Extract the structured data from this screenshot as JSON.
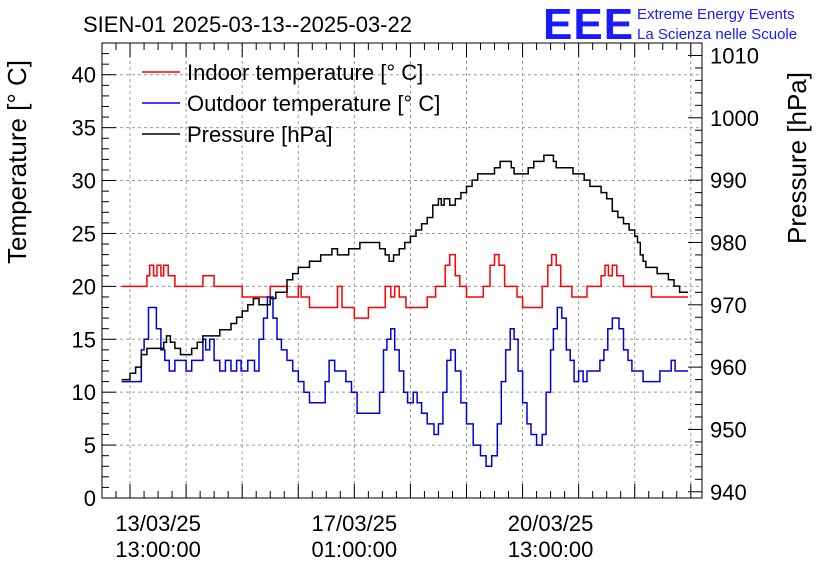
{
  "chart_data": {
    "type": "line",
    "title": "SIEN-01 2025-03-13--2025-03-22",
    "ylabel_left": "Temperature [° C]",
    "ylabel_right": "Pressure [hPa]",
    "ylim_left": [
      0,
      43
    ],
    "ylim_right": [
      939,
      1012
    ],
    "xlim": [
      -0.5,
      10.2
    ],
    "left_ticks": [
      "0",
      "5",
      "10",
      "15",
      "20",
      "25",
      "30",
      "35",
      "40"
    ],
    "right_ticks": [
      "940",
      "950",
      "960",
      "970",
      "980",
      "990",
      "1000",
      "1010"
    ],
    "x_ticks": [
      {
        "pos": 0.5,
        "line1": "13/03/25",
        "line2": "13:00:00"
      },
      {
        "pos": 4.0,
        "line1": "17/03/25",
        "line2": "01:00:00"
      },
      {
        "pos": 7.5,
        "line1": "20/03/25",
        "line2": "13:00:00"
      }
    ],
    "grid": true,
    "legend_position": "top-left",
    "series": [
      {
        "name": "Indoor temperature [° C]",
        "color": "#ff0000",
        "axis": "left",
        "points": [
          [
            -0.15,
            20
          ],
          [
            0.2,
            20
          ],
          [
            0.3,
            21
          ],
          [
            0.35,
            22
          ],
          [
            0.42,
            21
          ],
          [
            0.48,
            22
          ],
          [
            0.55,
            21
          ],
          [
            0.6,
            22
          ],
          [
            0.68,
            21
          ],
          [
            0.8,
            20
          ],
          [
            1.2,
            20
          ],
          [
            1.3,
            21
          ],
          [
            1.42,
            21
          ],
          [
            1.5,
            20
          ],
          [
            1.9,
            20
          ],
          [
            2.0,
            19
          ],
          [
            2.4,
            19
          ],
          [
            2.5,
            20
          ],
          [
            2.72,
            20
          ],
          [
            2.8,
            19
          ],
          [
            2.92,
            19
          ],
          [
            3.0,
            20
          ],
          [
            3.05,
            19
          ],
          [
            3.12,
            19
          ],
          [
            3.2,
            18
          ],
          [
            3.6,
            18
          ],
          [
            3.7,
            20
          ],
          [
            3.78,
            18
          ],
          [
            3.9,
            18
          ],
          [
            4.0,
            17
          ],
          [
            4.15,
            17
          ],
          [
            4.25,
            18
          ],
          [
            4.45,
            18
          ],
          [
            4.55,
            20
          ],
          [
            4.65,
            19
          ],
          [
            4.72,
            20
          ],
          [
            4.8,
            19
          ],
          [
            4.92,
            18
          ],
          [
            5.2,
            18
          ],
          [
            5.3,
            19
          ],
          [
            5.45,
            20
          ],
          [
            5.55,
            20
          ],
          [
            5.62,
            22
          ],
          [
            5.7,
            23
          ],
          [
            5.8,
            21
          ],
          [
            5.88,
            20
          ],
          [
            6.0,
            19
          ],
          [
            6.2,
            19
          ],
          [
            6.3,
            20
          ],
          [
            6.42,
            22
          ],
          [
            6.5,
            23
          ],
          [
            6.58,
            22
          ],
          [
            6.68,
            20
          ],
          [
            6.8,
            20
          ],
          [
            6.9,
            19
          ],
          [
            7.0,
            18
          ],
          [
            7.25,
            18
          ],
          [
            7.35,
            20
          ],
          [
            7.45,
            22
          ],
          [
            7.52,
            23
          ],
          [
            7.6,
            22
          ],
          [
            7.68,
            20
          ],
          [
            7.78,
            20
          ],
          [
            7.88,
            19
          ],
          [
            8.05,
            19
          ],
          [
            8.15,
            20
          ],
          [
            8.3,
            20
          ],
          [
            8.4,
            21
          ],
          [
            8.47,
            22
          ],
          [
            8.53,
            21
          ],
          [
            8.6,
            22
          ],
          [
            8.68,
            21
          ],
          [
            8.8,
            20
          ],
          [
            9.2,
            20
          ],
          [
            9.3,
            19
          ],
          [
            9.95,
            19
          ]
        ]
      },
      {
        "name": "Outdoor temperature [° C]",
        "color": "#0000dd",
        "axis": "left",
        "points": [
          [
            -0.15,
            11
          ],
          [
            0.1,
            11
          ],
          [
            0.2,
            14
          ],
          [
            0.25,
            15
          ],
          [
            0.33,
            18
          ],
          [
            0.4,
            18
          ],
          [
            0.47,
            16
          ],
          [
            0.55,
            14
          ],
          [
            0.62,
            13
          ],
          [
            0.7,
            12
          ],
          [
            0.8,
            13
          ],
          [
            0.9,
            13
          ],
          [
            1.0,
            12
          ],
          [
            1.1,
            13
          ],
          [
            1.2,
            13
          ],
          [
            1.3,
            15
          ],
          [
            1.35,
            14
          ],
          [
            1.42,
            15
          ],
          [
            1.5,
            13
          ],
          [
            1.6,
            12
          ],
          [
            1.7,
            13
          ],
          [
            1.8,
            12
          ],
          [
            1.9,
            13
          ],
          [
            1.98,
            12
          ],
          [
            2.1,
            13
          ],
          [
            2.22,
            12
          ],
          [
            2.3,
            15
          ],
          [
            2.38,
            17
          ],
          [
            2.45,
            19
          ],
          [
            2.55,
            17
          ],
          [
            2.62,
            15
          ],
          [
            2.7,
            14
          ],
          [
            2.8,
            13
          ],
          [
            2.9,
            12
          ],
          [
            3.0,
            11
          ],
          [
            3.1,
            10
          ],
          [
            3.2,
            9
          ],
          [
            3.4,
            9
          ],
          [
            3.48,
            11
          ],
          [
            3.55,
            13
          ],
          [
            3.65,
            12
          ],
          [
            3.75,
            12
          ],
          [
            3.85,
            11
          ],
          [
            3.95,
            10
          ],
          [
            4.05,
            8
          ],
          [
            4.35,
            8
          ],
          [
            4.45,
            10
          ],
          [
            4.52,
            14
          ],
          [
            4.58,
            15
          ],
          [
            4.65,
            16
          ],
          [
            4.72,
            14
          ],
          [
            4.8,
            12
          ],
          [
            4.88,
            10
          ],
          [
            4.95,
            9
          ],
          [
            5.05,
            10
          ],
          [
            5.12,
            9
          ],
          [
            5.2,
            8
          ],
          [
            5.3,
            7
          ],
          [
            5.42,
            6
          ],
          [
            5.5,
            7
          ],
          [
            5.58,
            10
          ],
          [
            5.65,
            13
          ],
          [
            5.72,
            14
          ],
          [
            5.8,
            12
          ],
          [
            5.9,
            9
          ],
          [
            6.0,
            7
          ],
          [
            6.12,
            5
          ],
          [
            6.25,
            4
          ],
          [
            6.35,
            3
          ],
          [
            6.45,
            4
          ],
          [
            6.55,
            7
          ],
          [
            6.62,
            11
          ],
          [
            6.7,
            14
          ],
          [
            6.78,
            16
          ],
          [
            6.85,
            15
          ],
          [
            6.92,
            12
          ],
          [
            7.0,
            9
          ],
          [
            7.08,
            7
          ],
          [
            7.15,
            6
          ],
          [
            7.25,
            5
          ],
          [
            7.35,
            6
          ],
          [
            7.42,
            10
          ],
          [
            7.5,
            14
          ],
          [
            7.55,
            16
          ],
          [
            7.62,
            18
          ],
          [
            7.7,
            17
          ],
          [
            7.78,
            14
          ],
          [
            7.85,
            13
          ],
          [
            7.92,
            11
          ],
          [
            8.0,
            12
          ],
          [
            8.08,
            11
          ],
          [
            8.15,
            12
          ],
          [
            8.22,
            12
          ],
          [
            8.3,
            12
          ],
          [
            8.38,
            13
          ],
          [
            8.45,
            14
          ],
          [
            8.52,
            16
          ],
          [
            8.6,
            17
          ],
          [
            8.67,
            17
          ],
          [
            8.72,
            16
          ],
          [
            8.8,
            14
          ],
          [
            8.88,
            13
          ],
          [
            8.95,
            12
          ],
          [
            9.05,
            12
          ],
          [
            9.15,
            11
          ],
          [
            9.35,
            11
          ],
          [
            9.45,
            12
          ],
          [
            9.55,
            12
          ],
          [
            9.65,
            13
          ],
          [
            9.72,
            12
          ],
          [
            9.95,
            12
          ]
        ]
      },
      {
        "name": "Pressure [hPa]",
        "color": "#000000",
        "axis": "right",
        "points": [
          [
            -0.15,
            958
          ],
          [
            0.0,
            959
          ],
          [
            0.1,
            960
          ],
          [
            0.2,
            962
          ],
          [
            0.3,
            963
          ],
          [
            0.5,
            963
          ],
          [
            0.6,
            964
          ],
          [
            0.65,
            965
          ],
          [
            0.72,
            964
          ],
          [
            0.8,
            963
          ],
          [
            0.9,
            962
          ],
          [
            1.0,
            962
          ],
          [
            1.1,
            963
          ],
          [
            1.2,
            964
          ],
          [
            1.3,
            965
          ],
          [
            1.5,
            965
          ],
          [
            1.6,
            966
          ],
          [
            1.7,
            966
          ],
          [
            1.8,
            967
          ],
          [
            1.9,
            968
          ],
          [
            2.0,
            969
          ],
          [
            2.1,
            970
          ],
          [
            2.2,
            971
          ],
          [
            2.3,
            970
          ],
          [
            2.4,
            970
          ],
          [
            2.5,
            971
          ],
          [
            2.6,
            972
          ],
          [
            2.7,
            972
          ],
          [
            2.8,
            974
          ],
          [
            2.9,
            975
          ],
          [
            3.0,
            976
          ],
          [
            3.1,
            976
          ],
          [
            3.2,
            977
          ],
          [
            3.3,
            977
          ],
          [
            3.4,
            978
          ],
          [
            3.5,
            978
          ],
          [
            3.6,
            979
          ],
          [
            3.7,
            978
          ],
          [
            3.8,
            978
          ],
          [
            3.9,
            979
          ],
          [
            4.0,
            979
          ],
          [
            4.1,
            980
          ],
          [
            4.2,
            980
          ],
          [
            4.35,
            980
          ],
          [
            4.45,
            979
          ],
          [
            4.55,
            978
          ],
          [
            4.62,
            977
          ],
          [
            4.7,
            978
          ],
          [
            4.8,
            979
          ],
          [
            4.9,
            980
          ],
          [
            5.0,
            981
          ],
          [
            5.1,
            982
          ],
          [
            5.2,
            983
          ],
          [
            5.3,
            984
          ],
          [
            5.4,
            986
          ],
          [
            5.5,
            987
          ],
          [
            5.55,
            986
          ],
          [
            5.6,
            987
          ],
          [
            5.7,
            986
          ],
          [
            5.8,
            987
          ],
          [
            5.9,
            988
          ],
          [
            6.0,
            989
          ],
          [
            6.1,
            990
          ],
          [
            6.2,
            991
          ],
          [
            6.3,
            991
          ],
          [
            6.4,
            991
          ],
          [
            6.5,
            992
          ],
          [
            6.6,
            993
          ],
          [
            6.7,
            993
          ],
          [
            6.8,
            992
          ],
          [
            6.85,
            991
          ],
          [
            6.9,
            991
          ],
          [
            7.0,
            991
          ],
          [
            7.1,
            992
          ],
          [
            7.2,
            993
          ],
          [
            7.3,
            993
          ],
          [
            7.38,
            994
          ],
          [
            7.45,
            994
          ],
          [
            7.55,
            993
          ],
          [
            7.6,
            992
          ],
          [
            7.8,
            992
          ],
          [
            7.9,
            991
          ],
          [
            8.0,
            991
          ],
          [
            8.1,
            990
          ],
          [
            8.2,
            989
          ],
          [
            8.3,
            989
          ],
          [
            8.4,
            988
          ],
          [
            8.5,
            987
          ],
          [
            8.6,
            985
          ],
          [
            8.7,
            984
          ],
          [
            8.8,
            983
          ],
          [
            8.9,
            982
          ],
          [
            9.0,
            981
          ],
          [
            9.05,
            980
          ],
          [
            9.1,
            978
          ],
          [
            9.15,
            977
          ],
          [
            9.2,
            976
          ],
          [
            9.3,
            976
          ],
          [
            9.4,
            975
          ],
          [
            9.5,
            975
          ],
          [
            9.6,
            974
          ],
          [
            9.7,
            973
          ],
          [
            9.8,
            972
          ],
          [
            9.9,
            972
          ],
          [
            9.95,
            972
          ]
        ]
      }
    ]
  },
  "logo": {
    "letters": "EEE",
    "line1": "Extreme Energy Events",
    "line2": "La Scienza nelle Scuole"
  }
}
